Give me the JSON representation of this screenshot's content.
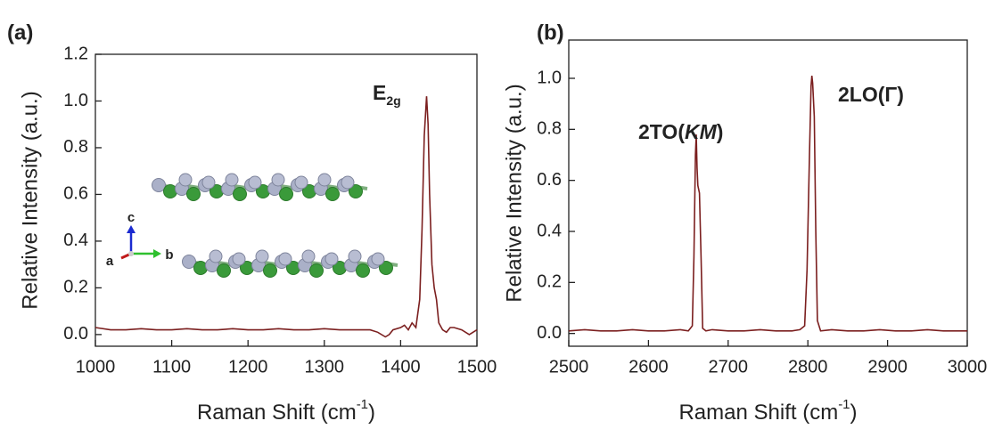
{
  "chart_data": [
    {
      "type": "line",
      "panel_label": "(a)",
      "xlabel": [
        "Raman Shift (cm",
        "-1",
        ")"
      ],
      "ylabel": "Relative Intensity (a.u.)",
      "annotation": [
        "E",
        "2g"
      ],
      "inset_axes_labels": [
        "c",
        "b",
        "a"
      ],
      "color": "#7b1f1f",
      "x": [
        1000,
        1020,
        1040,
        1060,
        1080,
        1100,
        1120,
        1140,
        1160,
        1180,
        1200,
        1220,
        1240,
        1260,
        1280,
        1300,
        1320,
        1340,
        1360,
        1370,
        1380,
        1385,
        1390,
        1400,
        1405,
        1410,
        1415,
        1420,
        1425,
        1428,
        1431,
        1434,
        1436,
        1438,
        1441,
        1444,
        1447,
        1450,
        1455,
        1460,
        1465,
        1470,
        1480,
        1490,
        1500
      ],
      "values": [
        0.03,
        0.02,
        0.02,
        0.025,
        0.02,
        0.02,
        0.025,
        0.02,
        0.02,
        0.025,
        0.02,
        0.02,
        0.025,
        0.02,
        0.02,
        0.025,
        0.02,
        0.02,
        0.02,
        0.01,
        -0.01,
        0.0,
        0.02,
        0.03,
        0.04,
        0.02,
        0.05,
        0.03,
        0.15,
        0.45,
        0.85,
        1.02,
        0.9,
        0.6,
        0.3,
        0.2,
        0.15,
        0.05,
        0.02,
        0.01,
        0.03,
        0.03,
        0.02,
        0.0,
        0.02
      ],
      "xlim": [
        1000,
        1500
      ],
      "xticks": [
        1000,
        1100,
        1200,
        1300,
        1400,
        1500
      ],
      "ylim": [
        -0.05,
        1.2
      ],
      "yticks": [
        {
          "value": 0,
          "label": "0.0"
        },
        0.2,
        0.4,
        0.6,
        0.8,
        {
          "value": 1,
          "label": "1.0"
        },
        1.2
      ]
    },
    {
      "type": "line",
      "panel_label": "(b)",
      "xlabel": [
        "Raman Shift (cm",
        "-1",
        ")"
      ],
      "ylabel": "Relative Intensity (a.u.)",
      "annotations": [
        [
          "2TO(",
          "KM",
          ")"
        ],
        [
          "2LO(Γ)"
        ]
      ],
      "color": "#7b1f1f",
      "x": [
        2500,
        2520,
        2540,
        2560,
        2580,
        2600,
        2620,
        2640,
        2650,
        2655,
        2657,
        2659,
        2660,
        2661,
        2662,
        2664,
        2666,
        2668,
        2672,
        2680,
        2700,
        2720,
        2740,
        2760,
        2780,
        2790,
        2796,
        2799,
        2802,
        2804,
        2805,
        2806,
        2808,
        2810,
        2812,
        2816,
        2830,
        2850,
        2870,
        2890,
        2910,
        2930,
        2950,
        2970,
        3000
      ],
      "values": [
        0.01,
        0.015,
        0.01,
        0.01,
        0.015,
        0.01,
        0.01,
        0.015,
        0.01,
        0.03,
        0.3,
        0.7,
        0.78,
        0.65,
        0.58,
        0.55,
        0.3,
        0.02,
        0.01,
        0.015,
        0.01,
        0.01,
        0.015,
        0.01,
        0.01,
        0.015,
        0.03,
        0.25,
        0.7,
        0.97,
        1.01,
        0.98,
        0.85,
        0.4,
        0.05,
        0.01,
        0.015,
        0.01,
        0.01,
        0.015,
        0.01,
        0.01,
        0.015,
        0.01,
        0.01
      ],
      "xlim": [
        2500,
        3000
      ],
      "xticks": [
        2500,
        2600,
        2700,
        2800,
        2900,
        3000
      ],
      "ylim": [
        -0.05,
        1.15
      ],
      "yticks": [
        {
          "value": 0,
          "label": "0.0"
        },
        0.2,
        0.4,
        0.6,
        0.8,
        {
          "value": 1,
          "label": "1.0"
        }
      ]
    }
  ]
}
